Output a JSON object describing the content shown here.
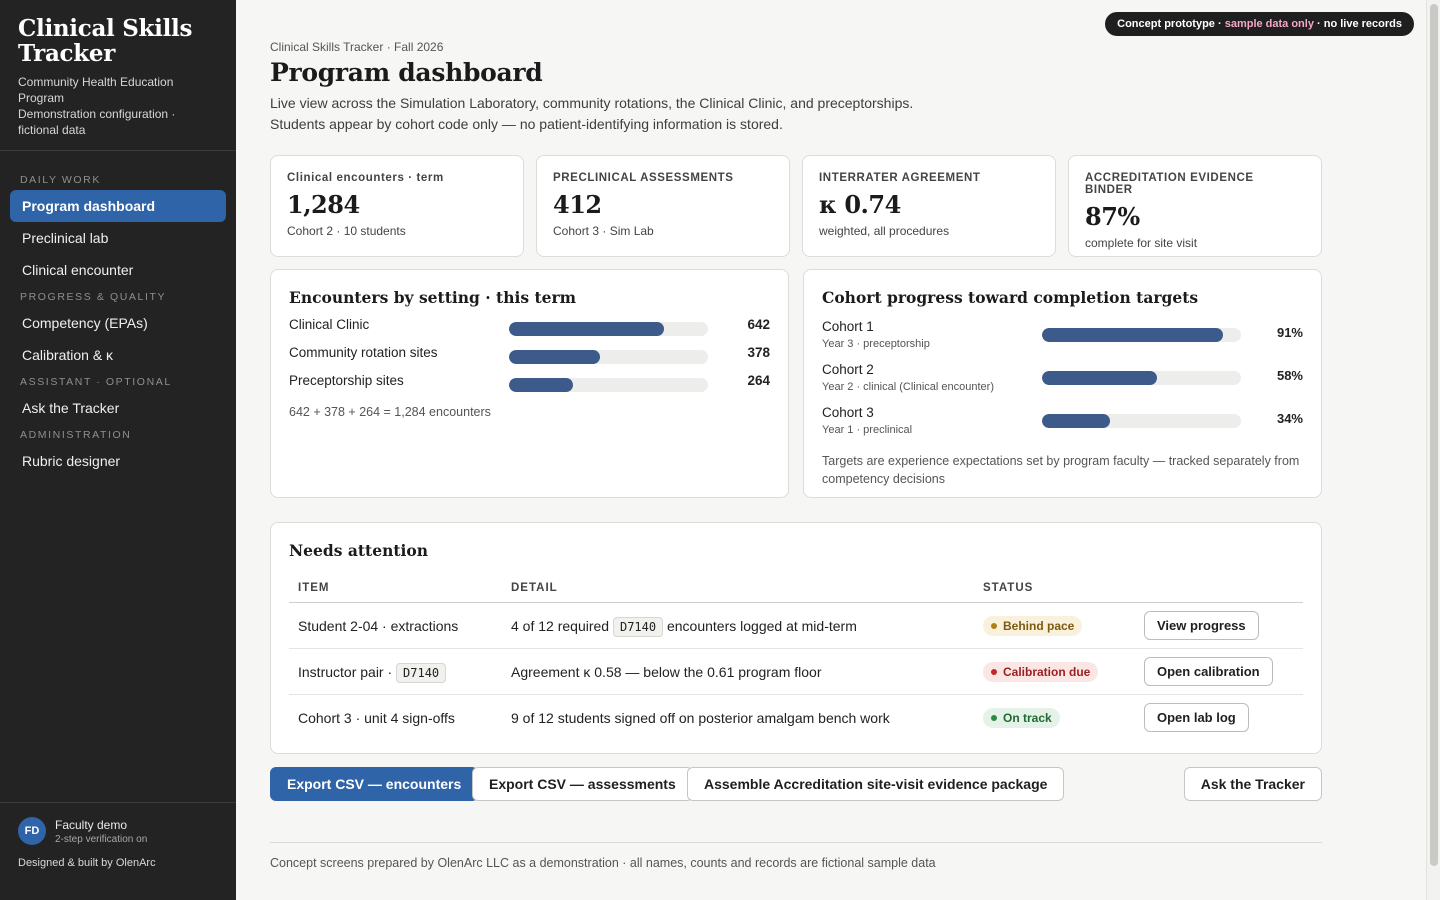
{
  "sidebar": {
    "title": "Clinical Skills Tracker",
    "subtitle_1": "Community Health Education Program",
    "subtitle_2": "Demonstration configuration · fictional data",
    "sections": {
      "daily": "DAILY WORK",
      "progress": "PROGRESS & QUALITY",
      "assistant": "ASSISTANT · OPTIONAL",
      "admin": "ADMINISTRATION"
    },
    "items": {
      "dashboard": "Program dashboard",
      "preclinical": "Preclinical lab",
      "encounter": "Clinical encounter",
      "competency": "Competency (EPAs)",
      "calibration": "Calibration & κ",
      "ask": "Ask the Tracker",
      "rubric": "Rubric designer"
    },
    "user": {
      "initials": "FD",
      "name": "Faculty demo",
      "security": "2-step verification on"
    },
    "credit": "Designed & built by OlenArc"
  },
  "banner": {
    "prefix": "Concept prototype · ",
    "highlight": "sample data only",
    "suffix": " · no live records"
  },
  "header": {
    "breadcrumb": "Clinical Skills Tracker · Fall 2026",
    "title": "Program dashboard",
    "description": "Live view across the Simulation Laboratory, community rotations, the Clinical Clinic, and preceptorships. Students appear by cohort code only — no patient-identifying information is stored."
  },
  "kpis": [
    {
      "label": "Clinical encounters · term",
      "value": "1,284",
      "sub": "Cohort 2 · 10 students"
    },
    {
      "label": "PRECLINICAL ASSESSMENTS",
      "value": "412",
      "sub": "Cohort 3 · Sim Lab"
    },
    {
      "label": "INTERRATER AGREEMENT",
      "value": "κ 0.74",
      "sub": "weighted, all procedures"
    },
    {
      "label": "ACCREDITATION EVIDENCE BINDER",
      "value": "87%",
      "sub": "complete for site visit"
    }
  ],
  "encounters": {
    "title": "Encounters by setting · this term",
    "max": 824,
    "rows": [
      {
        "label": "Clinical Clinic",
        "value": 642
      },
      {
        "label": "Community rotation sites",
        "value": 378
      },
      {
        "label": "Preceptorship sites",
        "value": 264
      }
    ],
    "note": "642 + 378 + 264 = 1,284 encounters"
  },
  "cohorts": {
    "title": "Cohort progress toward completion targets",
    "rows": [
      {
        "name": "Cohort 1",
        "sub": "Year 3 · preceptorship",
        "pct": 91,
        "pct_label": "91%"
      },
      {
        "name": "Cohort 2",
        "sub": "Year 2 · clinical (Clinical encounter)",
        "pct": 58,
        "pct_label": "58%"
      },
      {
        "name": "Cohort 3",
        "sub": "Year 1 · preclinical",
        "pct": 34,
        "pct_label": "34%"
      }
    ],
    "note": "Targets are experience expectations set by program faculty — tracked separately from competency decisions"
  },
  "attention": {
    "title": "Needs attention",
    "columns": {
      "item": "ITEM",
      "detail": "DETAIL",
      "status": "STATUS"
    },
    "rows": [
      {
        "item_prefix": "Student 2-04 · extractions",
        "item_code": "",
        "detail_prefix": "4 of 12 required ",
        "detail_code": "D7140",
        "detail_suffix": " encounters logged at mid-term",
        "status": "Behind pace",
        "status_kind": "warn",
        "action": "View progress"
      },
      {
        "item_prefix": "Instructor pair · ",
        "item_code": "D7140",
        "detail_prefix": "Agreement κ 0.58 — below the 0.61 program floor",
        "detail_code": "",
        "detail_suffix": "",
        "status": "Calibration due",
        "status_kind": "bad",
        "action": "Open calibration"
      },
      {
        "item_prefix": "Cohort 3 · unit 4 sign-offs",
        "item_code": "",
        "detail_prefix": "9 of 12 students signed off on posterior amalgam bench work",
        "detail_code": "",
        "detail_suffix": "",
        "status": "On track",
        "status_kind": "ok",
        "action": "Open lab log"
      }
    ]
  },
  "actions": {
    "export_encounters": "Export CSV — encounters",
    "export_assessments": "Export CSV — assessments",
    "assemble": "Assemble Accreditation site-visit evidence package",
    "ask": "Ask the Tracker"
  },
  "footer": "Concept screens prepared by OlenArc LLC as a demonstration · all names, counts and records are fictional sample data"
}
